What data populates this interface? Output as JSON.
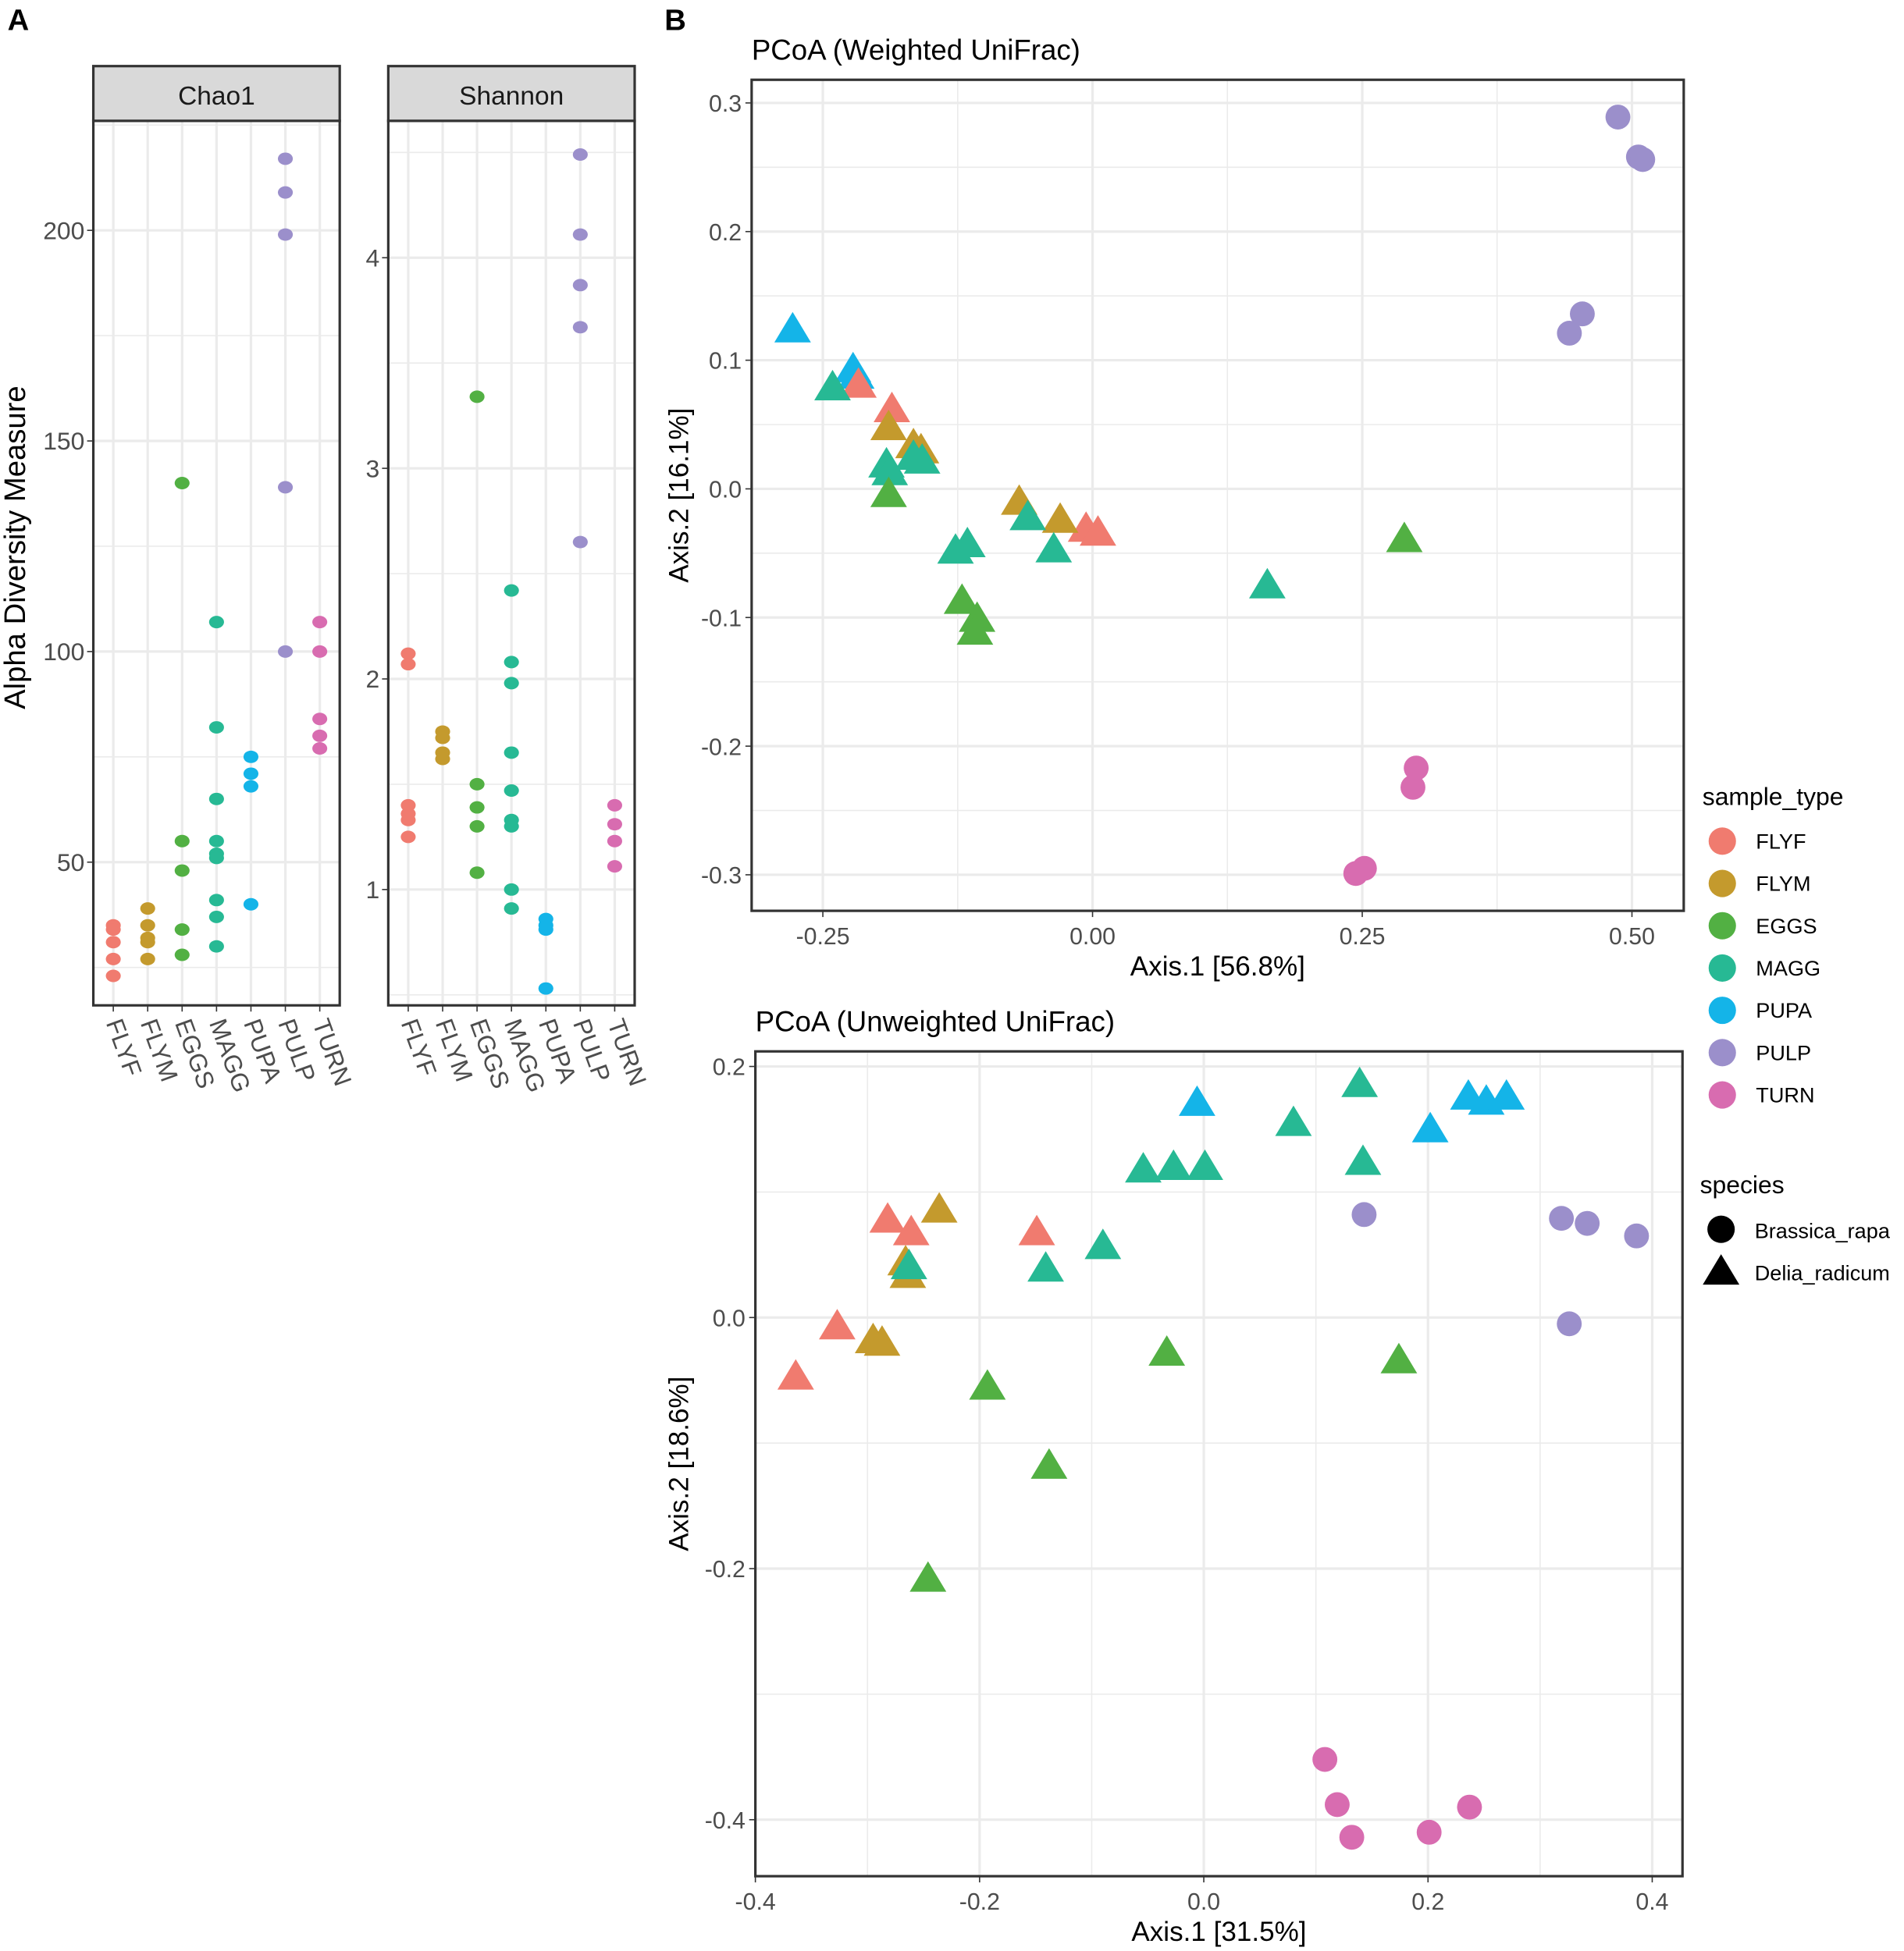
{
  "panel_labels": {
    "a": "A",
    "b": "B"
  },
  "colors": {
    "FLYF": "#F07B6F",
    "FLYM": "#C49A2D",
    "EGGS": "#52B043",
    "MAGG": "#27B994",
    "PUPA": "#14B4E8",
    "PULP": "#9B8FCB",
    "TURN": "#D86CB0"
  },
  "chart_data": [
    {
      "type": "scatter",
      "id": "chao1",
      "facet": "Chao1",
      "ylabel": "Alpha Diversity Measure",
      "categories": [
        "FLYF",
        "FLYM",
        "EGGS",
        "MAGG",
        "PUPA",
        "PULP",
        "TURN"
      ],
      "yticks": [
        50,
        100,
        150,
        200
      ],
      "ylim": [
        16,
        226
      ],
      "values": {
        "FLYF": [
          35,
          34,
          31,
          27,
          23
        ],
        "FLYM": [
          39,
          35,
          32,
          31,
          27
        ],
        "EGGS": [
          140,
          55,
          48,
          34,
          28
        ],
        "MAGG": [
          107,
          82,
          65,
          55,
          52,
          51,
          41,
          37,
          30
        ],
        "PUPA": [
          75,
          71,
          68,
          40
        ],
        "PULP": [
          217,
          209,
          199,
          139,
          100
        ],
        "TURN": [
          107,
          100,
          84,
          80,
          77
        ]
      }
    },
    {
      "type": "scatter",
      "id": "shannon",
      "facet": "Shannon",
      "categories": [
        "FLYF",
        "FLYM",
        "EGGS",
        "MAGG",
        "PUPA",
        "PULP",
        "TURN"
      ],
      "yticks": [
        1,
        2,
        3,
        4
      ],
      "ylim": [
        0.45,
        4.65
      ],
      "values": {
        "FLYF": [
          2.12,
          2.07,
          1.4,
          1.36,
          1.33,
          1.25
        ],
        "FLYM": [
          1.75,
          1.72,
          1.65,
          1.62
        ],
        "EGGS": [
          3.34,
          1.5,
          1.39,
          1.3,
          1.08
        ],
        "MAGG": [
          2.42,
          2.08,
          1.98,
          1.65,
          1.47,
          1.33,
          1.3,
          1.0,
          0.91
        ],
        "PUPA": [
          0.86,
          0.83,
          0.81,
          0.53
        ],
        "PULP": [
          4.49,
          4.11,
          3.87,
          3.67,
          2.65
        ],
        "TURN": [
          1.4,
          1.31,
          1.23,
          1.11
        ]
      }
    },
    {
      "type": "scatter",
      "id": "weighted",
      "title": "PCoA (Weighted UniFrac)",
      "xlabel": "Axis.1   [56.8%]",
      "ylabel": "Axis.2   [16.1%]",
      "xticks": [
        "-0.25",
        "0.00",
        "0.25",
        "0.50"
      ],
      "yticks": [
        "-0.3",
        "-0.2",
        "-0.1",
        "0.0",
        "0.1",
        "0.2",
        "0.3"
      ],
      "xlim": [
        -0.316,
        0.548
      ],
      "ylim": [
        -0.328,
        0.318
      ],
      "points": [
        [
          "PUPA",
          "Delia_radicum",
          -0.278,
          0.124
        ],
        [
          "PUPA",
          "Delia_radicum",
          -0.222,
          0.093
        ],
        [
          "PUPA",
          "Delia_radicum",
          -0.219,
          0.088
        ],
        [
          "FLYF",
          "Delia_radicum",
          -0.217,
          0.081
        ],
        [
          "FLYF",
          "Delia_radicum",
          -0.186,
          0.062
        ],
        [
          "FLYF",
          "Delia_radicum",
          -0.006,
          -0.031
        ],
        [
          "FLYF",
          "Delia_radicum",
          0.005,
          -0.034
        ],
        [
          "FLYM",
          "Delia_radicum",
          -0.189,
          0.048
        ],
        [
          "FLYM",
          "Delia_radicum",
          -0.166,
          0.034
        ],
        [
          "FLYM",
          "Delia_radicum",
          -0.159,
          0.03
        ],
        [
          "FLYM",
          "Delia_radicum",
          -0.068,
          -0.01
        ],
        [
          "FLYM",
          "Delia_radicum",
          -0.03,
          -0.024
        ],
        [
          "MAGG",
          "Delia_radicum",
          -0.241,
          0.079
        ],
        [
          "MAGG",
          "Delia_radicum",
          -0.191,
          0.019
        ],
        [
          "MAGG",
          "Delia_radicum",
          -0.188,
          0.013
        ],
        [
          "MAGG",
          "Delia_radicum",
          -0.166,
          0.025
        ],
        [
          "MAGG",
          "Delia_radicum",
          -0.158,
          0.022
        ],
        [
          "MAGG",
          "Delia_radicum",
          -0.06,
          -0.022
        ],
        [
          "MAGG",
          "Delia_radicum",
          -0.127,
          -0.048
        ],
        [
          "MAGG",
          "Delia_radicum",
          -0.116,
          -0.043
        ],
        [
          "MAGG",
          "Delia_radicum",
          -0.036,
          -0.047
        ],
        [
          "MAGG",
          "Delia_radicum",
          0.162,
          -0.075
        ],
        [
          "EGGS",
          "Delia_radicum",
          -0.189,
          -0.004
        ],
        [
          "EGGS",
          "Delia_radicum",
          -0.121,
          -0.087
        ],
        [
          "EGGS",
          "Delia_radicum",
          -0.107,
          -0.101
        ],
        [
          "EGGS",
          "Delia_radicum",
          -0.109,
          -0.111
        ],
        [
          "EGGS",
          "Delia_radicum",
          0.289,
          -0.039
        ],
        [
          "PULP",
          "Brassica_rapa",
          0.487,
          0.289
        ],
        [
          "PULP",
          "Brassica_rapa",
          0.506,
          0.258
        ],
        [
          "PULP",
          "Brassica_rapa",
          0.51,
          0.256
        ],
        [
          "PULP",
          "Brassica_rapa",
          0.454,
          0.136
        ],
        [
          "PULP",
          "Brassica_rapa",
          0.442,
          0.121
        ],
        [
          "TURN",
          "Brassica_rapa",
          0.3,
          -0.217
        ],
        [
          "TURN",
          "Brassica_rapa",
          0.297,
          -0.232
        ],
        [
          "TURN",
          "Brassica_rapa",
          0.244,
          -0.299
        ],
        [
          "TURN",
          "Brassica_rapa",
          0.252,
          -0.295
        ]
      ]
    },
    {
      "type": "scatter",
      "id": "unweighted",
      "title": "PCoA (Unweighted UniFrac)",
      "xlabel": "Axis.1   [31.5%]",
      "ylabel": "Axis.2   [18.6%]",
      "xticks": [
        "-0.4",
        "-0.2",
        "0.0",
        "0.2",
        "0.4"
      ],
      "yticks": [
        "-0.4",
        "-0.2",
        "0.0",
        "0.2"
      ],
      "xlim": [
        -0.4,
        0.427
      ],
      "ylim": [
        -0.445,
        0.212
      ],
      "points": [
        [
          "FLYF",
          "Delia_radicum",
          -0.282,
          0.078
        ],
        [
          "FLYF",
          "Delia_radicum",
          -0.261,
          0.068
        ],
        [
          "FLYF",
          "Delia_radicum",
          -0.149,
          0.068
        ],
        [
          "FLYF",
          "Delia_radicum",
          -0.327,
          -0.007
        ],
        [
          "FLYF",
          "Delia_radicum",
          -0.364,
          -0.047
        ],
        [
          "FLYM",
          "Delia_radicum",
          -0.236,
          0.086
        ],
        [
          "FLYM",
          "Delia_radicum",
          -0.266,
          0.044
        ],
        [
          "FLYM",
          "Delia_radicum",
          -0.264,
          0.034
        ],
        [
          "FLYM",
          "Delia_radicum",
          -0.295,
          -0.018
        ],
        [
          "FLYM",
          "Delia_radicum",
          -0.287,
          -0.02
        ],
        [
          "MAGG",
          "Delia_radicum",
          -0.263,
          0.041
        ],
        [
          "MAGG",
          "Delia_radicum",
          0.139,
          0.186
        ],
        [
          "MAGG",
          "Delia_radicum",
          0.08,
          0.155
        ],
        [
          "MAGG",
          "Delia_radicum",
          -0.054,
          0.118
        ],
        [
          "MAGG",
          "Delia_radicum",
          -0.027,
          0.12
        ],
        [
          "MAGG",
          "Delia_radicum",
          0.001,
          0.12
        ],
        [
          "MAGG",
          "Delia_radicum",
          0.142,
          0.124
        ],
        [
          "MAGG",
          "Delia_radicum",
          -0.09,
          0.057
        ],
        [
          "MAGG",
          "Delia_radicum",
          -0.141,
          0.039
        ],
        [
          "PUPA",
          "Delia_radicum",
          -0.006,
          0.171
        ],
        [
          "PUPA",
          "Delia_radicum",
          0.202,
          0.15
        ],
        [
          "PUPA",
          "Delia_radicum",
          0.236,
          0.176
        ],
        [
          "PUPA",
          "Delia_radicum",
          0.252,
          0.172
        ],
        [
          "PUPA",
          "Delia_radicum",
          0.27,
          0.176
        ],
        [
          "EGGS",
          "Delia_radicum",
          -0.033,
          -0.028
        ],
        [
          "EGGS",
          "Delia_radicum",
          0.174,
          -0.034
        ],
        [
          "EGGS",
          "Delia_radicum",
          -0.193,
          -0.055
        ],
        [
          "EGGS",
          "Delia_radicum",
          -0.138,
          -0.118
        ],
        [
          "EGGS",
          "Delia_radicum",
          -0.246,
          -0.208
        ],
        [
          "PULP",
          "Brassica_rapa",
          0.143,
          0.082
        ],
        [
          "PULP",
          "Brassica_rapa",
          0.319,
          0.079
        ],
        [
          "PULP",
          "Brassica_rapa",
          0.342,
          0.075
        ],
        [
          "PULP",
          "Brassica_rapa",
          0.386,
          0.065
        ],
        [
          "PULP",
          "Brassica_rapa",
          0.326,
          -0.005
        ],
        [
          "TURN",
          "Brassica_rapa",
          0.108,
          -0.352
        ],
        [
          "TURN",
          "Brassica_rapa",
          0.119,
          -0.388
        ],
        [
          "TURN",
          "Brassica_rapa",
          0.132,
          -0.414
        ],
        [
          "TURN",
          "Brassica_rapa",
          0.201,
          -0.41
        ],
        [
          "TURN",
          "Brassica_rapa",
          0.237,
          -0.39
        ]
      ]
    }
  ],
  "legend": {
    "sample_title": "sample_type",
    "sample_items": [
      "FLYF",
      "FLYM",
      "EGGS",
      "MAGG",
      "PUPA",
      "PULP",
      "TURN"
    ],
    "species_title": "species",
    "species_items": [
      "Brassica_rapa",
      "Delia_radicum"
    ],
    "placement": "right"
  }
}
